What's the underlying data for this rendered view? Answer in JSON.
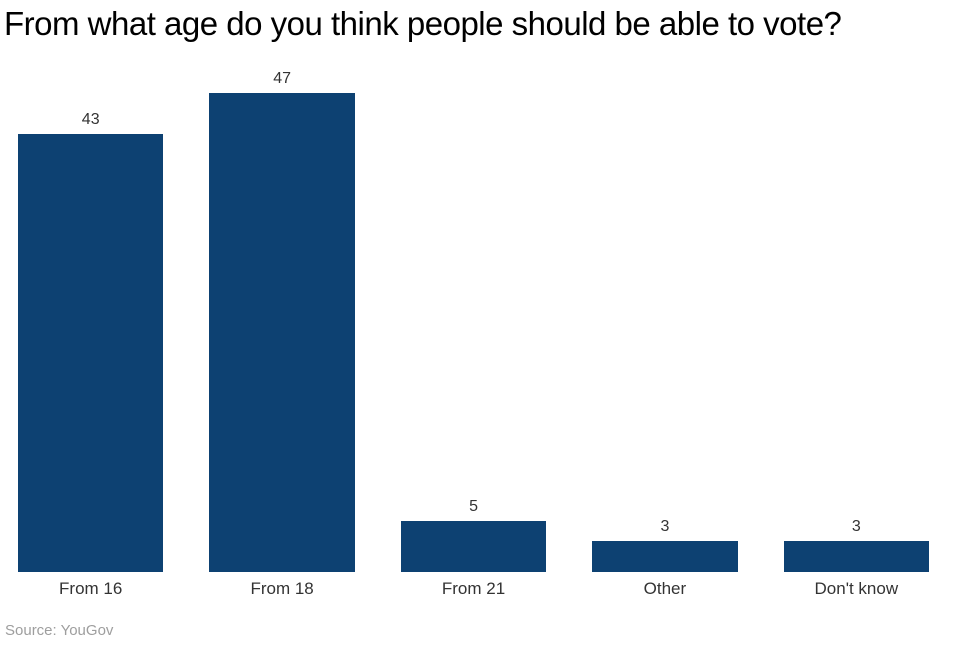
{
  "title": "From what age do you think people should be able to vote?",
  "source": "Source: YouGov",
  "colors": {
    "bar": "#0d4172",
    "title_text": "#000000",
    "label_text": "#333333",
    "source_text": "#9e9e9e",
    "background": "#ffffff"
  },
  "chart_data": {
    "type": "bar",
    "categories": [
      "From 16",
      "From 18",
      "From 21",
      "Other",
      "Don't know"
    ],
    "values": [
      43,
      47,
      5,
      3,
      3
    ],
    "title": "From what age do you think people should be able to vote?",
    "xlabel": "",
    "ylabel": "",
    "ylim": [
      0,
      50
    ],
    "grid": false,
    "axes_visible": false,
    "value_labels_shown": true,
    "bar_color": "#0d4172",
    "source": "Source: YouGov"
  }
}
